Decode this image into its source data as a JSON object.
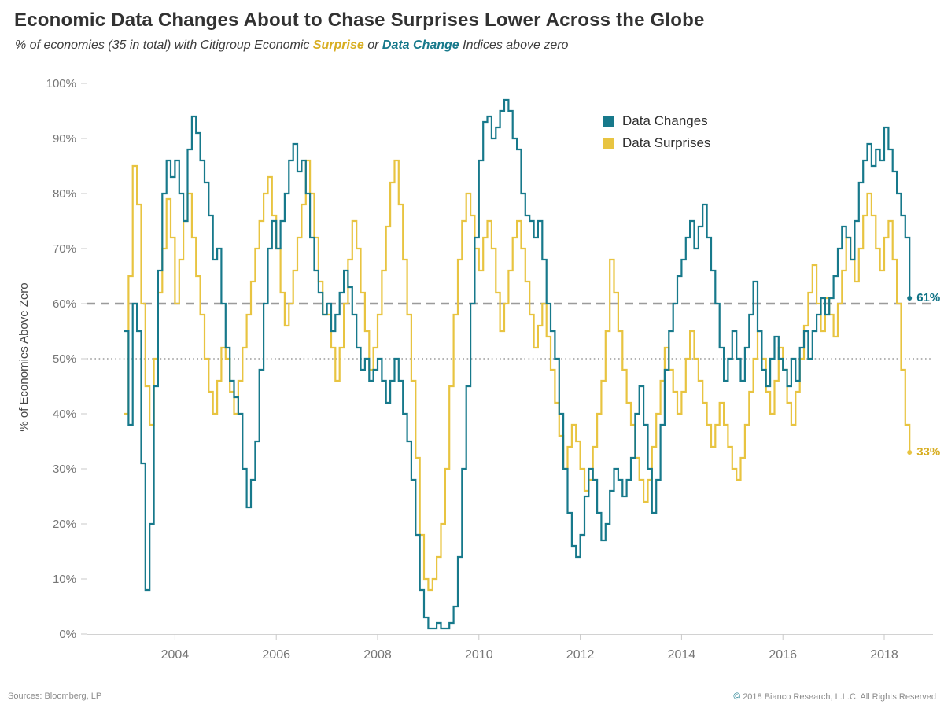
{
  "header": {
    "title": "Economic Data Changes About to Chase Surprises Lower Across the Globe",
    "subtitle": {
      "prefix": "% of economies (35 in total) with Citigroup Economic ",
      "surprise_word": "Surprise",
      "middle": " or ",
      "data_change_word": "Data Change",
      "suffix": " Indices above zero"
    }
  },
  "footer": {
    "sources": "Sources: Bloomberg, LP",
    "copyright_symbol": "©",
    "copyright_text": "2018 Bianco Research, L.L.C. All Rights Reserved"
  },
  "chart_data": {
    "type": "line",
    "step": true,
    "title": "Economic Data Changes About to Chase Surprises Lower Across the Globe",
    "xlabel": "",
    "ylabel": "% of Economies Above Zero",
    "ylim": [
      0,
      100
    ],
    "xlim": [
      2003,
      2018.8
    ],
    "grid": false,
    "legend_position": "top-right-inside",
    "x_start": 2003.0,
    "x_step_months": 1,
    "x_tick_values": [
      2004,
      2006,
      2008,
      2010,
      2012,
      2014,
      2016,
      2018
    ],
    "x_tick_labels": [
      "2004",
      "2006",
      "2008",
      "2010",
      "2012",
      "2014",
      "2016",
      "2018"
    ],
    "y_tick_values": [
      0,
      10,
      20,
      30,
      40,
      50,
      60,
      70,
      80,
      90,
      100
    ],
    "y_tick_labels": [
      "0%",
      "10%",
      "20%",
      "30%",
      "40%",
      "50%",
      "60%",
      "70%",
      "80%",
      "90%",
      "100%"
    ],
    "reference_lines": [
      {
        "value": 60,
        "style": "dashed",
        "color": "#9b9b9b"
      },
      {
        "value": 50,
        "style": "dotted",
        "color": "#9b9b9b"
      }
    ],
    "series": [
      {
        "name": "Data Changes",
        "color": "#17798b",
        "label_color": "#0f7285",
        "end_label": "61%",
        "values": [
          55,
          38,
          60,
          55,
          31,
          8,
          20,
          45,
          66,
          80,
          86,
          83,
          86,
          80,
          75,
          88,
          94,
          91,
          86,
          82,
          76,
          68,
          70,
          60,
          52,
          46,
          43,
          40,
          30,
          23,
          28,
          35,
          48,
          60,
          70,
          75,
          70,
          75,
          80,
          86,
          89,
          84,
          86,
          80,
          72,
          66,
          62,
          58,
          60,
          55,
          58,
          62,
          66,
          63,
          58,
          52,
          48,
          50,
          46,
          48,
          50,
          46,
          42,
          46,
          50,
          46,
          40,
          35,
          28,
          18,
          8,
          3,
          1,
          1,
          2,
          1,
          1,
          2,
          5,
          14,
          30,
          45,
          60,
          72,
          86,
          93,
          94,
          90,
          92,
          95,
          97,
          95,
          90,
          88,
          80,
          76,
          75,
          72,
          75,
          68,
          60,
          55,
          50,
          40,
          30,
          22,
          16,
          14,
          18,
          25,
          30,
          28,
          22,
          17,
          20,
          26,
          30,
          28,
          25,
          28,
          32,
          40,
          45,
          38,
          30,
          22,
          28,
          38,
          48,
          55,
          60,
          65,
          68,
          72,
          75,
          70,
          74,
          78,
          72,
          66,
          60,
          52,
          46,
          50,
          55,
          50,
          46,
          52,
          58,
          64,
          55,
          48,
          45,
          50,
          54,
          50,
          48,
          45,
          50,
          46,
          52,
          55,
          50,
          55,
          58,
          61,
          58,
          61,
          65,
          70,
          74,
          72,
          68,
          75,
          82,
          86,
          89,
          85,
          88,
          86,
          92,
          88,
          84,
          80,
          76,
          72,
          61
        ]
      },
      {
        "name": "Data Surprises",
        "color": "#e8c441",
        "label_color": "#d8ae22",
        "end_label": "33%",
        "values": [
          40,
          65,
          85,
          78,
          60,
          45,
          38,
          50,
          62,
          70,
          79,
          72,
          60,
          68,
          75,
          80,
          72,
          65,
          58,
          50,
          44,
          40,
          46,
          52,
          50,
          44,
          40,
          46,
          52,
          58,
          64,
          70,
          75,
          80,
          83,
          76,
          70,
          62,
          56,
          60,
          66,
          72,
          78,
          86,
          80,
          72,
          64,
          58,
          58,
          52,
          46,
          52,
          60,
          68,
          75,
          70,
          62,
          55,
          48,
          52,
          58,
          66,
          74,
          82,
          86,
          78,
          68,
          58,
          46,
          32,
          18,
          10,
          8,
          10,
          14,
          20,
          30,
          45,
          58,
          68,
          75,
          80,
          76,
          70,
          66,
          72,
          75,
          70,
          62,
          55,
          60,
          66,
          72,
          75,
          70,
          64,
          58,
          52,
          56,
          60,
          54,
          48,
          42,
          36,
          30,
          34,
          38,
          35,
          30,
          26,
          28,
          34,
          40,
          46,
          55,
          68,
          62,
          55,
          48,
          42,
          38,
          32,
          28,
          24,
          28,
          34,
          40,
          46,
          52,
          48,
          44,
          40,
          44,
          50,
          55,
          50,
          46,
          42,
          38,
          34,
          38,
          42,
          38,
          34,
          30,
          28,
          32,
          38,
          44,
          50,
          55,
          50,
          44,
          40,
          46,
          52,
          48,
          42,
          38,
          44,
          50,
          56,
          62,
          67,
          60,
          55,
          61,
          58,
          54,
          60,
          66,
          72,
          68,
          64,
          70,
          76,
          80,
          76,
          70,
          66,
          72,
          75,
          68,
          60,
          48,
          38,
          33
        ]
      }
    ]
  }
}
